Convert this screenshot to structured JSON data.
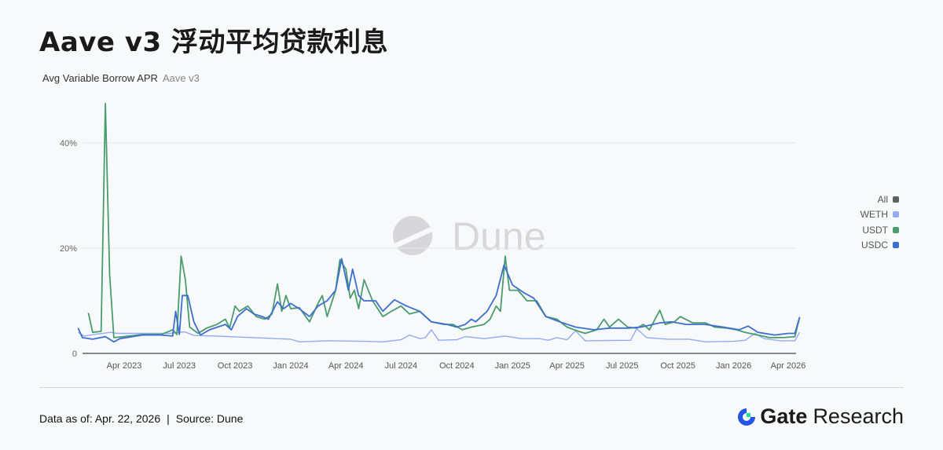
{
  "header": {
    "title": "Aave v3 浮动平均贷款利息",
    "subtitle": "Avg Variable Borrow APR",
    "subtitle_project": "Aave v3"
  },
  "footer": {
    "data_as_of": "Data as of: Apr. 22, 2026",
    "separator": "|",
    "source": "Source:  Dune"
  },
  "brand": {
    "name_bold": "Gate",
    "name_regular": "Research",
    "colors": {
      "blue": "#2354e6",
      "green": "#17e3a0"
    }
  },
  "watermark": "Dune",
  "chart_data": {
    "type": "line",
    "title": "Avg Variable Borrow APR",
    "ylim": [
      0,
      48
    ],
    "y_ticks": [
      {
        "v": 0,
        "label": "0"
      },
      {
        "v": 20,
        "label": "20%"
      },
      {
        "v": 40,
        "label": "40%"
      }
    ],
    "x_ticks": [
      {
        "d": "2023-04-01",
        "label": "Apr 2023"
      },
      {
        "d": "2023-07-01",
        "label": "Jul 2023"
      },
      {
        "d": "2023-10-01",
        "label": "Oct 2023"
      },
      {
        "d": "2024-01-01",
        "label": "Jan 2024"
      },
      {
        "d": "2024-04-01",
        "label": "Apr 2024"
      },
      {
        "d": "2024-07-01",
        "label": "Jul 2024"
      },
      {
        "d": "2024-10-01",
        "label": "Oct 2024"
      },
      {
        "d": "2025-01-01",
        "label": "Jan 2025"
      },
      {
        "d": "2025-04-01",
        "label": "Apr 2025"
      },
      {
        "d": "2025-07-01",
        "label": "Jul 2025"
      },
      {
        "d": "2025-10-01",
        "label": "Oct 2025"
      },
      {
        "d": "2026-01-01",
        "label": "Jan 2026"
      },
      {
        "d": "2026-04-01",
        "label": "Apr 2026"
      }
    ],
    "grid": true,
    "legend_placement": "right",
    "legend": [
      {
        "name": "All",
        "color": "#5f6062"
      },
      {
        "name": "WETH",
        "color": "#94abf0"
      },
      {
        "name": "USDT",
        "color": "#4a9c6d"
      },
      {
        "name": "USDC",
        "color": "#3d6fce"
      }
    ],
    "series": [
      {
        "name": "WETH",
        "color": "#94abf0",
        "points": [
          [
            "2023-01-15",
            4
          ],
          [
            "2023-01-25",
            3.3
          ],
          [
            "2023-02-10",
            3.6
          ],
          [
            "2023-03-10",
            4
          ],
          [
            "2023-03-20",
            3.8
          ],
          [
            "2023-05-01",
            3.8
          ],
          [
            "2023-06-15",
            3.8
          ],
          [
            "2023-07-10",
            4.1
          ],
          [
            "2023-07-25",
            3.4
          ],
          [
            "2023-09-01",
            3.3
          ],
          [
            "2023-11-01",
            3
          ],
          [
            "2024-01-01",
            2.7
          ],
          [
            "2024-01-15",
            2.2
          ],
          [
            "2024-03-01",
            2.4
          ],
          [
            "2024-05-01",
            2.3
          ],
          [
            "2024-06-01",
            2.2
          ],
          [
            "2024-07-01",
            2.6
          ],
          [
            "2024-07-15",
            3.5
          ],
          [
            "2024-08-01",
            2.8
          ],
          [
            "2024-08-10",
            3
          ],
          [
            "2024-08-20",
            4.5
          ],
          [
            "2024-09-01",
            2.5
          ],
          [
            "2024-10-01",
            2.6
          ],
          [
            "2024-10-15",
            3.2
          ],
          [
            "2024-11-15",
            2.8
          ],
          [
            "2024-12-20",
            3.3
          ],
          [
            "2025-01-15",
            2.8
          ],
          [
            "2025-02-15",
            2.8
          ],
          [
            "2025-03-01",
            2.5
          ],
          [
            "2025-03-15",
            3
          ],
          [
            "2025-04-01",
            2.6
          ],
          [
            "2025-04-15",
            4.3
          ],
          [
            "2025-05-01",
            2.4
          ],
          [
            "2025-07-15",
            2.5
          ],
          [
            "2025-07-25",
            4.7
          ],
          [
            "2025-08-10",
            3
          ],
          [
            "2025-09-15",
            2.7
          ],
          [
            "2025-10-20",
            2.7
          ],
          [
            "2025-11-15",
            2.2
          ],
          [
            "2026-01-01",
            2.3
          ],
          [
            "2026-01-20",
            2.5
          ],
          [
            "2026-02-05",
            3.8
          ],
          [
            "2026-02-20",
            2.8
          ],
          [
            "2026-03-20",
            2.4
          ],
          [
            "2026-04-12",
            2.4
          ],
          [
            "2026-04-20",
            4
          ]
        ]
      },
      {
        "name": "USDT",
        "color": "#4a9c6d",
        "points": [
          [
            "2023-02-01",
            7.7
          ],
          [
            "2023-02-08",
            4
          ],
          [
            "2023-02-22",
            4.2
          ],
          [
            "2023-03-01",
            47.5
          ],
          [
            "2023-03-08",
            15
          ],
          [
            "2023-03-15",
            3
          ],
          [
            "2023-04-01",
            3.2
          ],
          [
            "2023-05-01",
            3.6
          ],
          [
            "2023-06-01",
            3.6
          ],
          [
            "2023-06-20",
            4.5
          ],
          [
            "2023-06-27",
            3.6
          ],
          [
            "2023-07-04",
            18.5
          ],
          [
            "2023-07-11",
            14
          ],
          [
            "2023-07-18",
            5
          ],
          [
            "2023-08-01",
            3.8
          ],
          [
            "2023-08-15",
            4.8
          ],
          [
            "2023-09-01",
            5.5
          ],
          [
            "2023-09-15",
            6.5
          ],
          [
            "2023-09-22",
            4.8
          ],
          [
            "2023-10-01",
            9
          ],
          [
            "2023-10-08",
            8
          ],
          [
            "2023-10-22",
            9
          ],
          [
            "2023-11-05",
            7
          ],
          [
            "2023-11-19",
            6.5
          ],
          [
            "2023-12-01",
            7.5
          ],
          [
            "2023-12-10",
            13.2
          ],
          [
            "2023-12-17",
            8
          ],
          [
            "2023-12-24",
            11
          ],
          [
            "2024-01-01",
            8.5
          ],
          [
            "2024-01-15",
            8.7
          ],
          [
            "2024-02-01",
            6
          ],
          [
            "2024-02-15",
            9.5
          ],
          [
            "2024-02-22",
            11
          ],
          [
            "2024-03-01",
            7
          ],
          [
            "2024-03-15",
            12
          ],
          [
            "2024-03-22",
            17.8
          ],
          [
            "2024-04-01",
            16
          ],
          [
            "2024-04-08",
            10.5
          ],
          [
            "2024-04-15",
            12
          ],
          [
            "2024-04-22",
            8.5
          ],
          [
            "2024-05-01",
            14
          ],
          [
            "2024-05-15",
            10
          ],
          [
            "2024-06-01",
            7
          ],
          [
            "2024-06-15",
            8
          ],
          [
            "2024-07-01",
            9
          ],
          [
            "2024-07-15",
            7.5
          ],
          [
            "2024-08-01",
            8
          ],
          [
            "2024-08-20",
            6
          ],
          [
            "2024-09-10",
            5.5
          ],
          [
            "2024-09-25",
            5.5
          ],
          [
            "2024-10-10",
            4.5
          ],
          [
            "2024-10-25",
            5
          ],
          [
            "2024-11-15",
            5.5
          ],
          [
            "2024-11-25",
            6.5
          ],
          [
            "2024-12-05",
            9
          ],
          [
            "2024-12-12",
            8
          ],
          [
            "2024-12-20",
            18.5
          ],
          [
            "2024-12-27",
            12
          ],
          [
            "2025-01-10",
            12
          ],
          [
            "2025-01-25",
            10
          ],
          [
            "2025-02-10",
            10
          ],
          [
            "2025-02-25",
            7
          ],
          [
            "2025-03-15",
            6.5
          ],
          [
            "2025-04-01",
            5
          ],
          [
            "2025-04-20",
            4.2
          ],
          [
            "2025-05-01",
            3.8
          ],
          [
            "2025-05-20",
            4.5
          ],
          [
            "2025-06-01",
            6.5
          ],
          [
            "2025-06-10",
            5
          ],
          [
            "2025-06-25",
            6.5
          ],
          [
            "2025-07-10",
            5
          ],
          [
            "2025-07-25",
            4.8
          ],
          [
            "2025-08-05",
            5.5
          ],
          [
            "2025-08-15",
            4.5
          ],
          [
            "2025-09-01",
            8.2
          ],
          [
            "2025-09-10",
            5.5
          ],
          [
            "2025-09-25",
            6
          ],
          [
            "2025-10-05",
            7
          ],
          [
            "2025-10-25",
            5.8
          ],
          [
            "2025-11-15",
            5.8
          ],
          [
            "2025-12-01",
            5
          ],
          [
            "2025-12-20",
            4.8
          ],
          [
            "2026-01-05",
            4.5
          ],
          [
            "2026-01-20",
            4
          ],
          [
            "2026-02-10",
            3.5
          ],
          [
            "2026-03-01",
            3
          ],
          [
            "2026-03-25",
            3
          ],
          [
            "2026-04-12",
            3.2
          ],
          [
            "2026-04-20",
            6.9
          ]
        ]
      },
      {
        "name": "USDC",
        "color": "#3d6fce",
        "points": [
          [
            "2023-01-15",
            4.8
          ],
          [
            "2023-01-22",
            3
          ],
          [
            "2023-02-08",
            2.7
          ],
          [
            "2023-03-01",
            3.2
          ],
          [
            "2023-03-15",
            2.2
          ],
          [
            "2023-03-25",
            2.8
          ],
          [
            "2023-05-01",
            3.5
          ],
          [
            "2023-06-01",
            3.5
          ],
          [
            "2023-06-20",
            3.3
          ],
          [
            "2023-06-25",
            8
          ],
          [
            "2023-07-01",
            3.6
          ],
          [
            "2023-07-06",
            11
          ],
          [
            "2023-07-15",
            11
          ],
          [
            "2023-07-25",
            6
          ],
          [
            "2023-08-05",
            3.5
          ],
          [
            "2023-08-20",
            4.5
          ],
          [
            "2023-09-15",
            5.5
          ],
          [
            "2023-09-25",
            4.5
          ],
          [
            "2023-10-05",
            7
          ],
          [
            "2023-10-20",
            8.5
          ],
          [
            "2023-11-01",
            7.5
          ],
          [
            "2023-11-15",
            7
          ],
          [
            "2023-11-25",
            6.5
          ],
          [
            "2023-12-10",
            9.8
          ],
          [
            "2023-12-20",
            8.5
          ],
          [
            "2024-01-01",
            9.5
          ],
          [
            "2024-01-15",
            8.5
          ],
          [
            "2024-02-01",
            7
          ],
          [
            "2024-02-15",
            9
          ],
          [
            "2024-03-01",
            10
          ],
          [
            "2024-03-15",
            12
          ],
          [
            "2024-03-25",
            18
          ],
          [
            "2024-04-05",
            12
          ],
          [
            "2024-04-12",
            16
          ],
          [
            "2024-04-22",
            11
          ],
          [
            "2024-05-01",
            10
          ],
          [
            "2024-05-20",
            10
          ],
          [
            "2024-06-01",
            8
          ],
          [
            "2024-06-20",
            10.2
          ],
          [
            "2024-07-10",
            9
          ],
          [
            "2024-08-01",
            8
          ],
          [
            "2024-08-20",
            6
          ],
          [
            "2024-09-15",
            5.5
          ],
          [
            "2024-10-01",
            5
          ],
          [
            "2024-10-15",
            5.5
          ],
          [
            "2024-10-25",
            6.5
          ],
          [
            "2024-11-01",
            6
          ],
          [
            "2024-11-20",
            8
          ],
          [
            "2024-12-05",
            11
          ],
          [
            "2024-12-18",
            16.8
          ],
          [
            "2025-01-01",
            13
          ],
          [
            "2025-01-20",
            11.5
          ],
          [
            "2025-02-05",
            10.5
          ],
          [
            "2025-02-25",
            7
          ],
          [
            "2025-03-20",
            6
          ],
          [
            "2025-04-15",
            5
          ],
          [
            "2025-05-15",
            4.5
          ],
          [
            "2025-06-10",
            4.8
          ],
          [
            "2025-07-10",
            4.8
          ],
          [
            "2025-08-01",
            5
          ],
          [
            "2025-09-01",
            5.8
          ],
          [
            "2025-09-20",
            6
          ],
          [
            "2025-10-15",
            5.5
          ],
          [
            "2025-11-15",
            5.5
          ],
          [
            "2025-12-15",
            5
          ],
          [
            "2026-01-10",
            4.5
          ],
          [
            "2026-01-25",
            5.2
          ],
          [
            "2026-02-10",
            4
          ],
          [
            "2026-03-10",
            3.5
          ],
          [
            "2026-04-01",
            3.8
          ],
          [
            "2026-04-12",
            3.8
          ],
          [
            "2026-04-20",
            6.9
          ]
        ]
      }
    ]
  }
}
